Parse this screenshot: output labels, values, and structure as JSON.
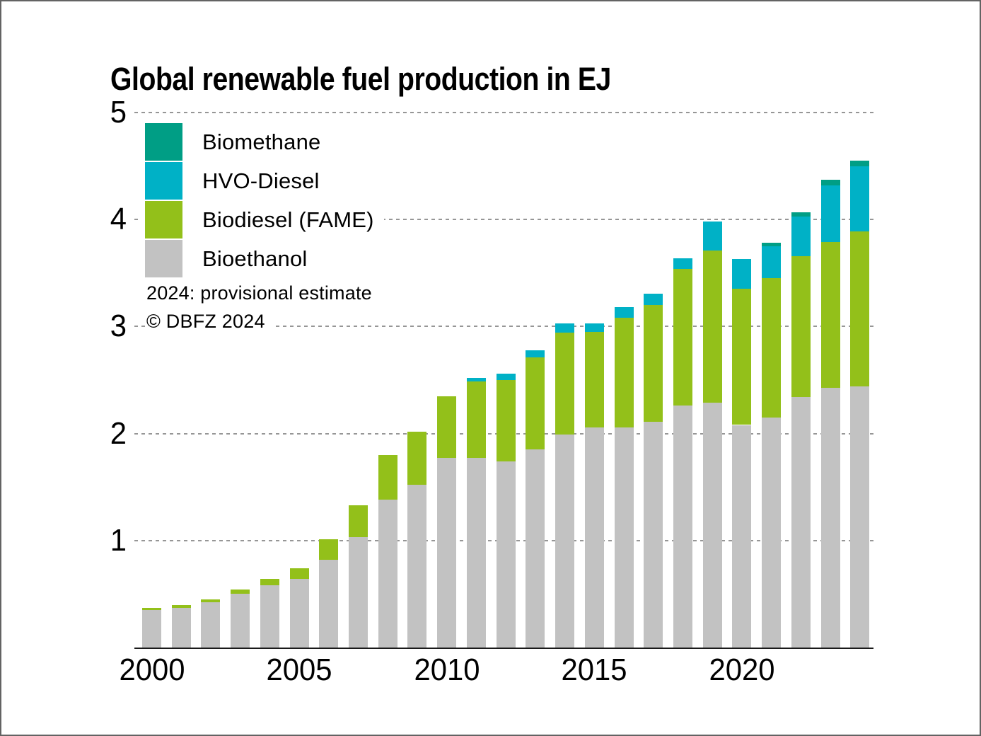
{
  "title": "Global renewable fuel production in EJ",
  "notes": {
    "line1": "2024: provisional estimate",
    "line2": "© DBFZ 2024"
  },
  "legend": [
    {
      "label": "Biomethane",
      "color": "#009e85"
    },
    {
      "label": "HVO-Diesel",
      "color": "#00b1c6"
    },
    {
      "label": "Biodiesel (FAME)",
      "color": "#93c01a"
    },
    {
      "label": "Bioethanol",
      "color": "#c2c2c2"
    }
  ],
  "chart_data": {
    "type": "bar",
    "stacked": true,
    "title": "Global renewable fuel production in EJ",
    "unit": "EJ",
    "x": [
      2000,
      2001,
      2002,
      2003,
      2004,
      2005,
      2006,
      2007,
      2008,
      2009,
      2010,
      2011,
      2012,
      2013,
      2014,
      2015,
      2016,
      2017,
      2018,
      2019,
      2020,
      2021,
      2022,
      2023,
      2024
    ],
    "series": [
      {
        "name": "Bioethanol",
        "color": "#c2c2c2",
        "values": [
          0.35,
          0.37,
          0.42,
          0.5,
          0.58,
          0.64,
          0.82,
          1.03,
          1.38,
          1.52,
          1.77,
          1.77,
          1.74,
          1.85,
          1.99,
          2.06,
          2.06,
          2.11,
          2.26,
          2.29,
          2.08,
          2.15,
          2.34,
          2.43,
          2.44
        ]
      },
      {
        "name": "Biodiesel (FAME)",
        "color": "#93c01a",
        "values": [
          0.02,
          0.03,
          0.03,
          0.04,
          0.06,
          0.1,
          0.19,
          0.3,
          0.42,
          0.5,
          0.58,
          0.72,
          0.76,
          0.86,
          0.95,
          0.89,
          1.02,
          1.09,
          1.28,
          1.42,
          1.27,
          1.3,
          1.32,
          1.36,
          1.45
        ]
      },
      {
        "name": "HVO-Diesel",
        "color": "#00b1c6",
        "values": [
          0,
          0,
          0,
          0,
          0,
          0,
          0,
          0,
          0,
          0,
          0,
          0.03,
          0.06,
          0.07,
          0.09,
          0.08,
          0.1,
          0.11,
          0.1,
          0.27,
          0.28,
          0.3,
          0.37,
          0.53,
          0.61
        ]
      },
      {
        "name": "Biomethane",
        "color": "#009e85",
        "values": [
          0,
          0,
          0,
          0,
          0,
          0,
          0,
          0,
          0,
          0,
          0,
          0,
          0,
          0,
          0,
          0,
          0,
          0,
          0,
          0,
          0,
          0.03,
          0.04,
          0.05,
          0.05
        ]
      }
    ],
    "ylim": [
      0,
      5
    ],
    "yticks": [
      1,
      2,
      3,
      4,
      5
    ],
    "xtick_labels": [
      "2000",
      "2005",
      "2010",
      "2015",
      "2020"
    ],
    "xtick_indices": [
      0,
      5,
      10,
      15,
      20
    ],
    "grid": "horizontal-dashed",
    "legend_position": "top-left"
  }
}
